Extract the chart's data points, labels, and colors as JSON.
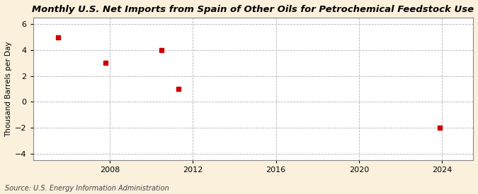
{
  "title": "Monthly U.S. Net Imports from Spain of Other Oils for Petrochemical Feedstock Use",
  "ylabel": "Thousand Barrels per Day",
  "source": "Source: U.S. Energy Information Administration",
  "figure_bg_color": "#FAF0DC",
  "plot_bg_color": "#FFFFFF",
  "data_x": [
    2005.5,
    2007.8,
    2010.5,
    2011.3,
    2023.9
  ],
  "data_y": [
    5,
    3,
    4,
    1,
    -2
  ],
  "marker_color": "#CC0000",
  "marker_size": 4,
  "xlim": [
    2004.3,
    2025.5
  ],
  "ylim": [
    -4.5,
    6.5
  ],
  "yticks": [
    -4,
    -2,
    0,
    2,
    4,
    6
  ],
  "xticks": [
    2008,
    2012,
    2016,
    2020,
    2024
  ],
  "grid_color": "#AAAAAA",
  "title_fontsize": 9.5,
  "axis_label_fontsize": 7.5,
  "tick_fontsize": 8,
  "source_fontsize": 7
}
